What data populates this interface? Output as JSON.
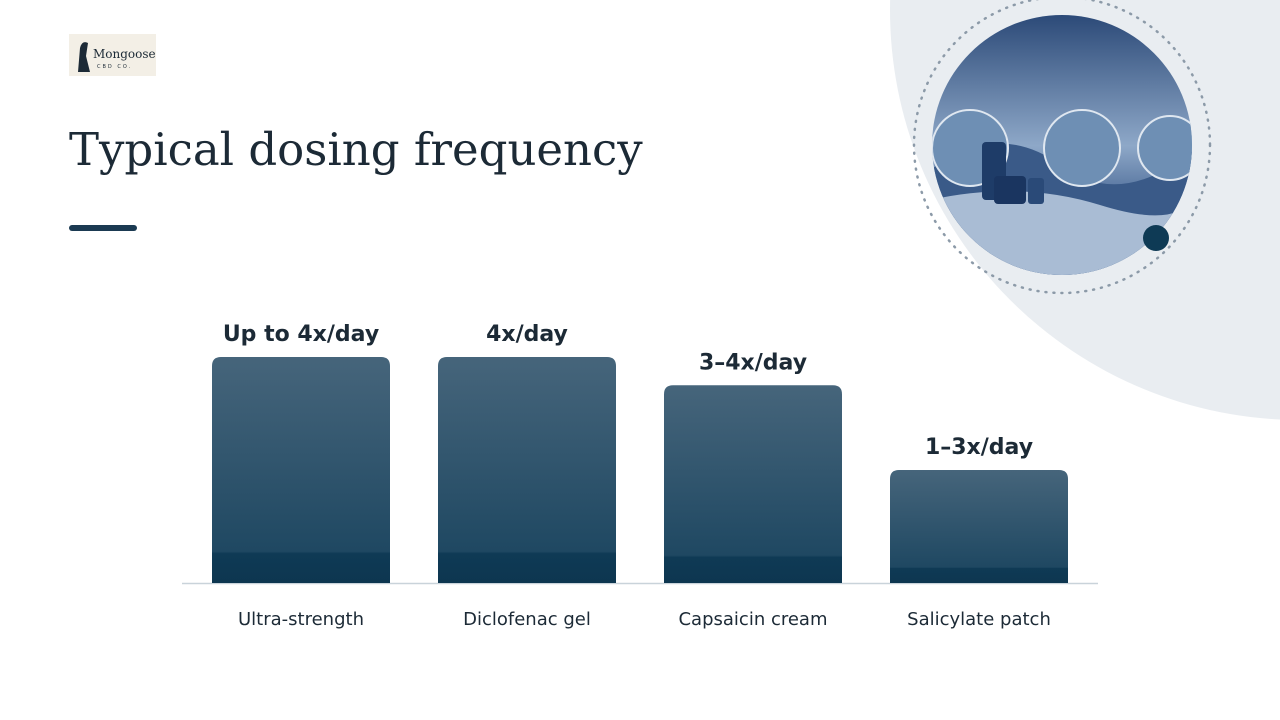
{
  "logo": {
    "name": "Mongoose",
    "tagline": "CBD CO."
  },
  "chart_data": {
    "type": "bar",
    "title": "Typical dosing frequency",
    "categories": [
      "Ultra-strength",
      "Diclofenac gel",
      "Capsaicin cream",
      "Salicylate patch"
    ],
    "values": [
      4,
      4,
      3.5,
      2
    ],
    "value_labels": [
      "Up to 4x/day",
      "4x/day",
      "3–4x/day",
      "1–3x/day"
    ],
    "color": "#2e5570"
  }
}
